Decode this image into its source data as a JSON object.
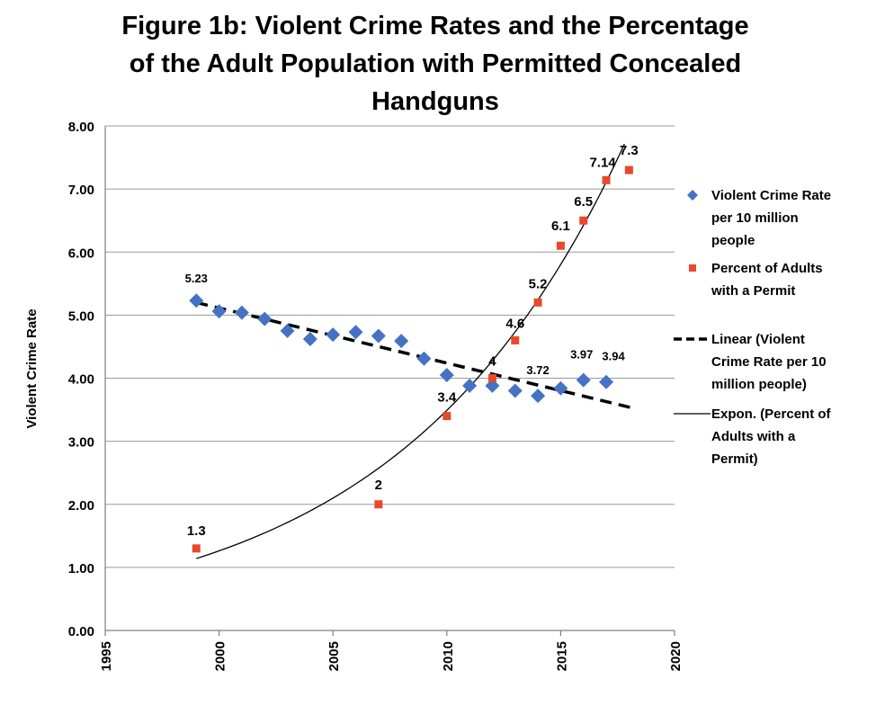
{
  "chart_data": {
    "type": "scatter",
    "title_lines": [
      "Figure 1b: Violent Crime Rates and the Percentage",
      "of the Adult Population with Permitted Concealed",
      "Handguns"
    ],
    "xlabel": "",
    "ylabel": "Violent Crime Rate",
    "xlim": [
      1995,
      2020
    ],
    "ylim": [
      0,
      8
    ],
    "x_ticks": [
      1995,
      2000,
      2005,
      2010,
      2015,
      2020
    ],
    "y_ticks": [
      "0.00",
      "1.00",
      "2.00",
      "3.00",
      "4.00",
      "5.00",
      "6.00",
      "7.00",
      "8.00"
    ],
    "grid": true,
    "legend_position": "right",
    "series": [
      {
        "name": "Violent Crime Rate per 10 million people",
        "legend_lines": [
          "Violent Crime Rate",
          "per 10 million",
          "people"
        ],
        "marker": "diamond",
        "color": "#4472C4",
        "x": [
          1999,
          2000,
          2001,
          2002,
          2003,
          2004,
          2005,
          2006,
          2007,
          2008,
          2009,
          2010,
          2011,
          2012,
          2013,
          2014,
          2015,
          2016,
          2017
        ],
        "y": [
          5.23,
          5.06,
          5.04,
          4.94,
          4.75,
          4.62,
          4.69,
          4.73,
          4.67,
          4.59,
          4.31,
          4.05,
          3.88,
          3.88,
          3.8,
          3.72,
          3.84,
          3.97,
          3.94
        ]
      },
      {
        "name": "Percent of Adults with a Permit",
        "legend_lines": [
          "Percent of Adults",
          "with a Permit"
        ],
        "marker": "square",
        "color": "#E8492B",
        "x": [
          1999,
          2007,
          2010,
          2012,
          2013,
          2014,
          2015,
          2016,
          2017,
          2018
        ],
        "y": [
          1.3,
          2,
          3.4,
          4,
          4.6,
          5.2,
          6.1,
          6.5,
          7.14,
          7.3
        ]
      }
    ],
    "data_labels": [
      {
        "series": 0,
        "x": 1999,
        "text": "5.23"
      },
      {
        "series": 0,
        "x": 2014,
        "text": "3.72"
      },
      {
        "series": 0,
        "x": 2016,
        "text": "3.97"
      },
      {
        "series": 0,
        "x": 2017,
        "text": "3.94"
      },
      {
        "series": 1,
        "x": 1999,
        "text": "1.3"
      },
      {
        "series": 1,
        "x": 2007,
        "text": "2"
      },
      {
        "series": 1,
        "x": 2010,
        "text": "3.4"
      },
      {
        "series": 1,
        "x": 2012,
        "text": "4"
      },
      {
        "series": 1,
        "x": 2013,
        "text": "4.6"
      },
      {
        "series": 1,
        "x": 2014,
        "text": "5.2"
      },
      {
        "series": 1,
        "x": 2015,
        "text": "6.1"
      },
      {
        "series": 1,
        "x": 2016,
        "text": "6.5"
      },
      {
        "series": 1,
        "x": 2017,
        "text": "7.14"
      },
      {
        "series": 1,
        "x": 2018,
        "text": "7.3"
      }
    ],
    "trendlines": [
      {
        "type": "linear",
        "legend_lines": [
          "Linear (Violent",
          "Crime Rate per 10",
          "million people)"
        ],
        "style": "dashed",
        "color": "#000000",
        "x_range": [
          1999,
          2018.3
        ],
        "slope": -0.0873,
        "intercept_at_1999": 5.2
      },
      {
        "type": "exponential",
        "legend_lines": [
          "Expon. (Percent of",
          "Adults with a",
          "Permit)"
        ],
        "style": "solid",
        "color": "#000000",
        "x_range": [
          1999,
          2017.8
        ],
        "a_at_1999": 1.14,
        "rate": 0.1017
      }
    ]
  }
}
